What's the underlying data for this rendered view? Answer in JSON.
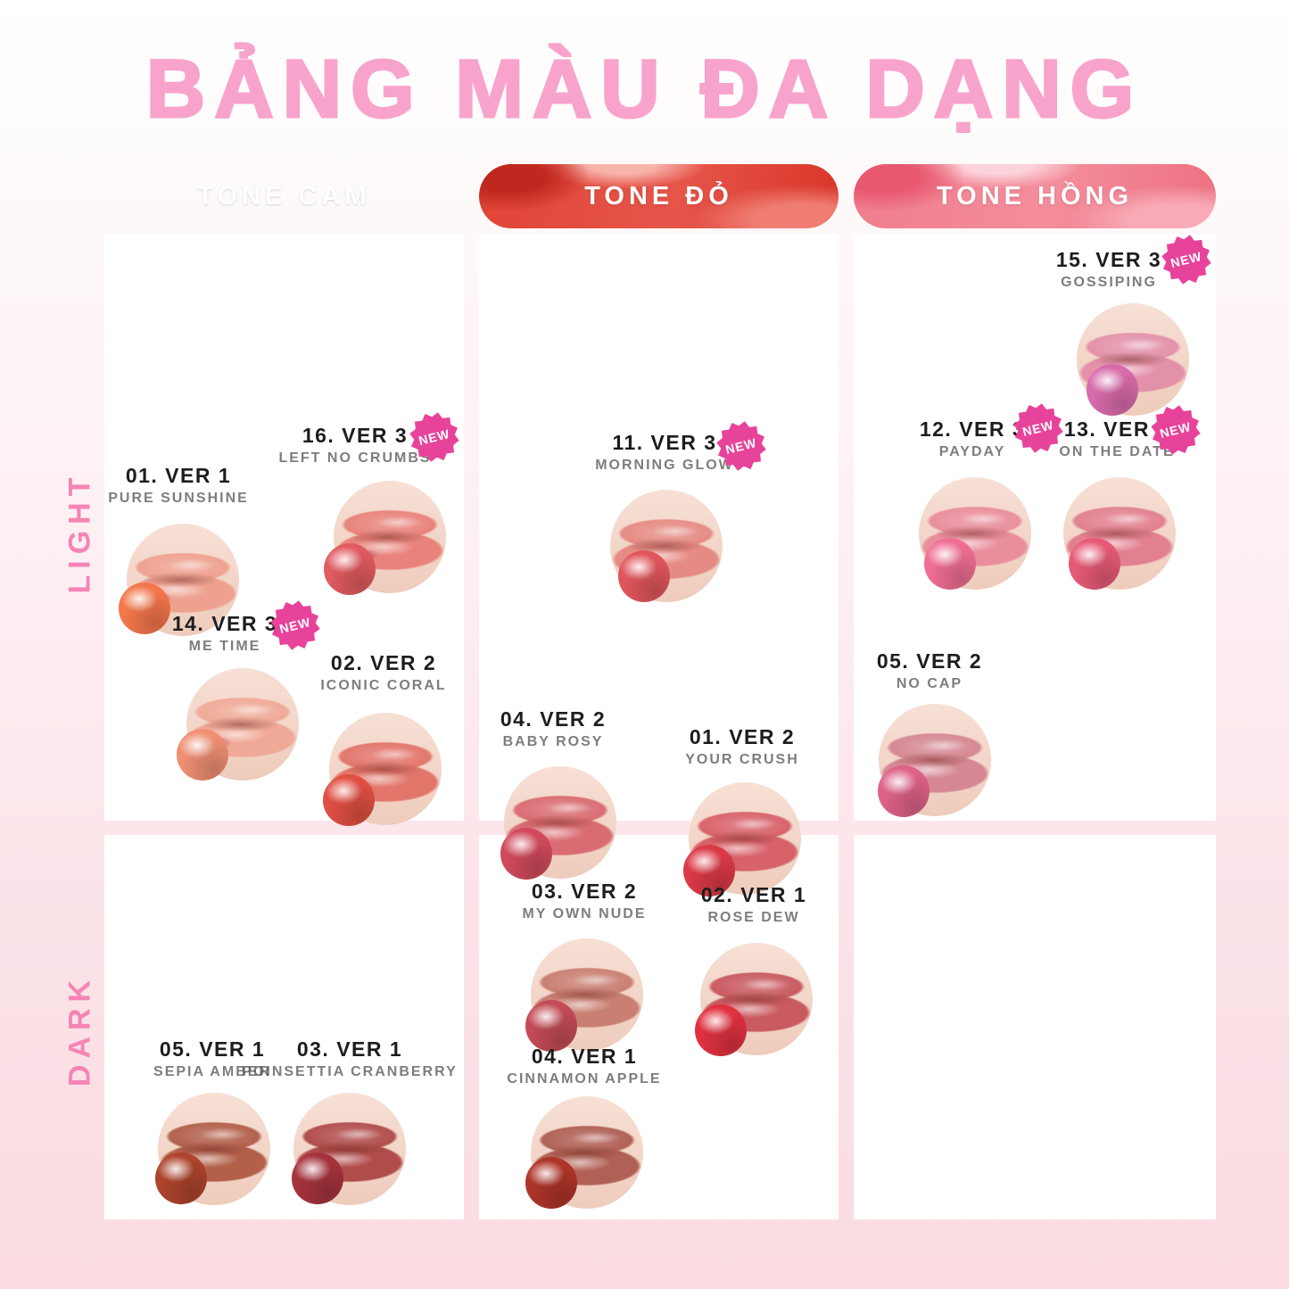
{
  "title": "BẢNG MÀU ĐA DẠNG",
  "badge_label": "NEW",
  "colors": {
    "title_pink": "#f8a3cc",
    "row_label_pink": "#f584b5",
    "badge_pink": "#e8439b",
    "cell_white": "#ffffff",
    "background_top": "#ffffff",
    "background_bottom": "#fadce2",
    "number_text": "#1d1d1f",
    "name_text": "#525252",
    "tone_cam_base": "#c4684c",
    "tone_do_base": "#e04437",
    "tone_hong_base": "#f07d8d"
  },
  "rows": [
    {
      "id": "light",
      "label": "LIGHT"
    },
    {
      "id": "dark",
      "label": "DARK"
    }
  ],
  "columns": [
    {
      "id": "cam",
      "label": "TONE CAM"
    },
    {
      "id": "do",
      "label": "TONE ĐỎ"
    },
    {
      "id": "hong",
      "label": "TONE HỒNG"
    }
  ],
  "items": [
    {
      "id": "pure-sunshine",
      "number": "01. VER 1",
      "name": "PURE SUNSHINE",
      "column": "cam",
      "row": "light",
      "new": false,
      "lip_color": "#efa18f",
      "swatch_color": "#f4764b"
    },
    {
      "id": "left-no-crumbs",
      "number": "16. VER 3",
      "name": "LEFT NO CRUMBS",
      "column": "cam",
      "row": "light",
      "new": true,
      "lip_color": "#e8837b",
      "swatch_color": "#e05b60"
    },
    {
      "id": "me-time",
      "number": "14. VER 3",
      "name": "ME TIME",
      "column": "cam",
      "row": "light",
      "new": true,
      "lip_color": "#f0a997",
      "swatch_color": "#f08f74"
    },
    {
      "id": "iconic-coral",
      "number": "02. VER 2",
      "name": "ICONIC CORAL",
      "column": "cam",
      "row": "light",
      "new": false,
      "lip_color": "#e2766b",
      "swatch_color": "#e14f43"
    },
    {
      "id": "morning-glow",
      "number": "11. VER 3",
      "name": "MORNING GLOW",
      "column": "do",
      "row": "light",
      "new": true,
      "lip_color": "#e58b84",
      "swatch_color": "#e0565c"
    },
    {
      "id": "baby-rosy",
      "number": "04. VER 2",
      "name": "BABY ROSY",
      "column": "do",
      "row": "light",
      "new": false,
      "lip_color": "#d96c72",
      "swatch_color": "#d14a5c"
    },
    {
      "id": "your-crush",
      "number": "01. VER 2",
      "name": "YOUR CRUSH",
      "column": "do",
      "row": "light",
      "new": false,
      "lip_color": "#d8626a",
      "swatch_color": "#dc3947"
    },
    {
      "id": "my-own-nude",
      "number": "03. VER 2",
      "name": "MY OWN NUDE",
      "column": "do",
      "row": "dark",
      "new": false,
      "lip_color": "#c97f72",
      "swatch_color": "#c24b55"
    },
    {
      "id": "rose-dew",
      "number": "02. VER 1",
      "name": "ROSE DEW",
      "column": "do",
      "row": "dark",
      "new": false,
      "lip_color": "#c85a60",
      "swatch_color": "#e0313f"
    },
    {
      "id": "cinnamon-apple",
      "number": "04. VER 1",
      "name": "CINNAMON APPLE",
      "column": "do",
      "row": "dark",
      "new": false,
      "lip_color": "#b06055",
      "swatch_color": "#ae3428"
    },
    {
      "id": "gossiping",
      "number": "15. VER 3",
      "name": "GOSSIPING",
      "column": "hong",
      "row": "light",
      "new": true,
      "lip_color": "#e391a9",
      "swatch_color": "#d86bab"
    },
    {
      "id": "payday",
      "number": "12. VER 3",
      "name": "PAYDAY",
      "column": "hong",
      "row": "light",
      "new": true,
      "lip_color": "#e98e9c",
      "swatch_color": "#f06e93"
    },
    {
      "id": "on-the-date",
      "number": "13. VER 3",
      "name": "ON THE DATE",
      "column": "hong",
      "row": "light",
      "new": true,
      "lip_color": "#e2808f",
      "swatch_color": "#e75a76"
    },
    {
      "id": "no-cap",
      "number": "05. VER 2",
      "name": "NO CAP",
      "column": "hong",
      "row": "light",
      "new": false,
      "lip_color": "#d58893",
      "swatch_color": "#de6288"
    },
    {
      "id": "sepia-amber",
      "number": "05. VER 1",
      "name": "SEPIA AMBER",
      "column": "cam",
      "row": "dark",
      "new": false,
      "lip_color": "#b2604a",
      "swatch_color": "#ad432c"
    },
    {
      "id": "poinsettia-cranberry",
      "number": "03. VER 1",
      "name": "POINSETTIA CRANBERRY",
      "column": "cam",
      "row": "dark",
      "new": false,
      "lip_color": "#b04c4b",
      "swatch_color": "#a5333c"
    }
  ]
}
